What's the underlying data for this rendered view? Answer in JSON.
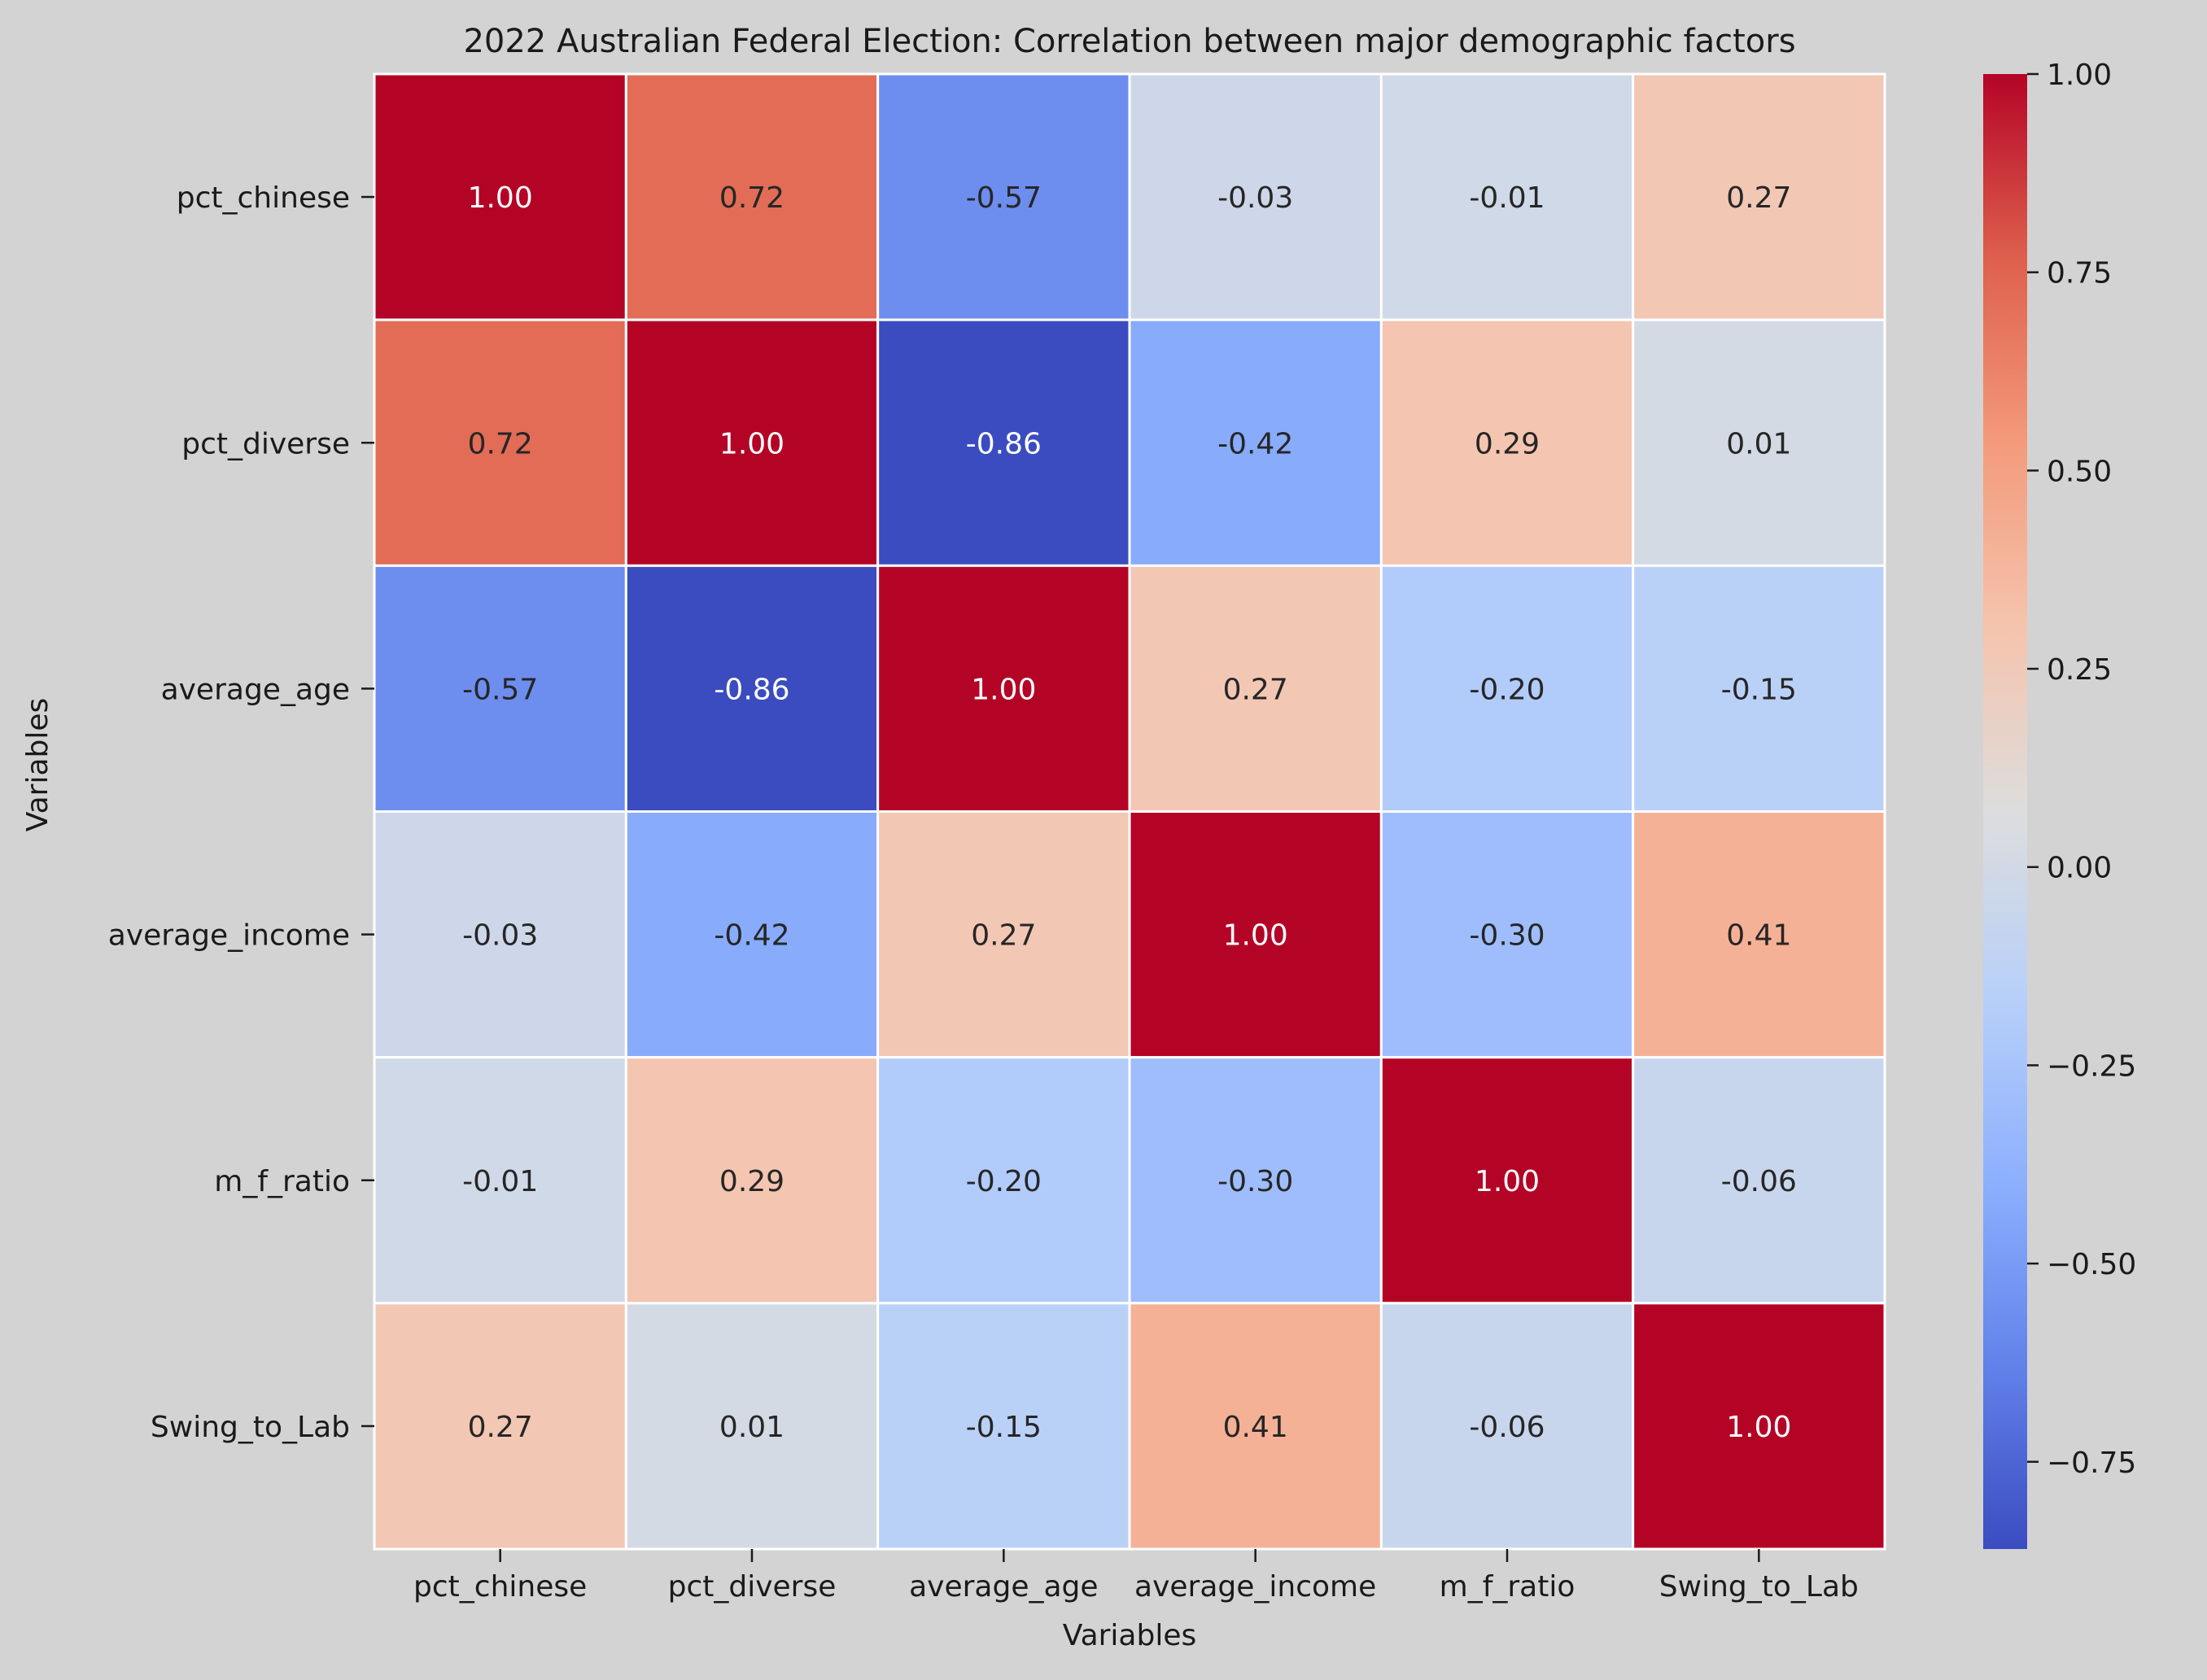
{
  "figure": {
    "background": "#d3d3d3"
  },
  "chart_data": {
    "type": "heatmap",
    "title": "2022 Australian Federal Election: Correlation between major demographic factors",
    "xlabel": "Variables",
    "ylabel": "Variables",
    "x_categories": [
      "pct_chinese",
      "pct_diverse",
      "average_age",
      "average_income",
      "m_f_ratio",
      "Swing_to_Lab"
    ],
    "y_categories": [
      "pct_chinese",
      "pct_diverse",
      "average_age",
      "average_income",
      "m_f_ratio",
      "Swing_to_Lab"
    ],
    "values": [
      [
        1.0,
        0.72,
        -0.57,
        -0.03,
        -0.01,
        0.27
      ],
      [
        0.72,
        1.0,
        -0.86,
        -0.42,
        0.29,
        0.01
      ],
      [
        -0.57,
        -0.86,
        1.0,
        0.27,
        -0.2,
        -0.15
      ],
      [
        -0.03,
        -0.42,
        0.27,
        1.0,
        -0.3,
        0.41
      ],
      [
        -0.01,
        0.29,
        -0.2,
        -0.3,
        1.0,
        -0.06
      ],
      [
        0.27,
        0.01,
        -0.15,
        0.41,
        -0.06,
        1.0
      ]
    ],
    "value_format": "0.00",
    "colormap": "coolwarm",
    "color_range": [
      -0.86,
      1.0
    ],
    "colorbar": {
      "ticks": [
        1.0,
        0.75,
        0.5,
        0.25,
        0.0,
        -0.25,
        -0.5,
        -0.75
      ],
      "tick_labels": [
        "1.00",
        "0.75",
        "0.50",
        "0.25",
        "0.00",
        "−0.25",
        "−0.50",
        "−0.75"
      ]
    },
    "cell_border_color": "#ffffff",
    "grid": false
  }
}
